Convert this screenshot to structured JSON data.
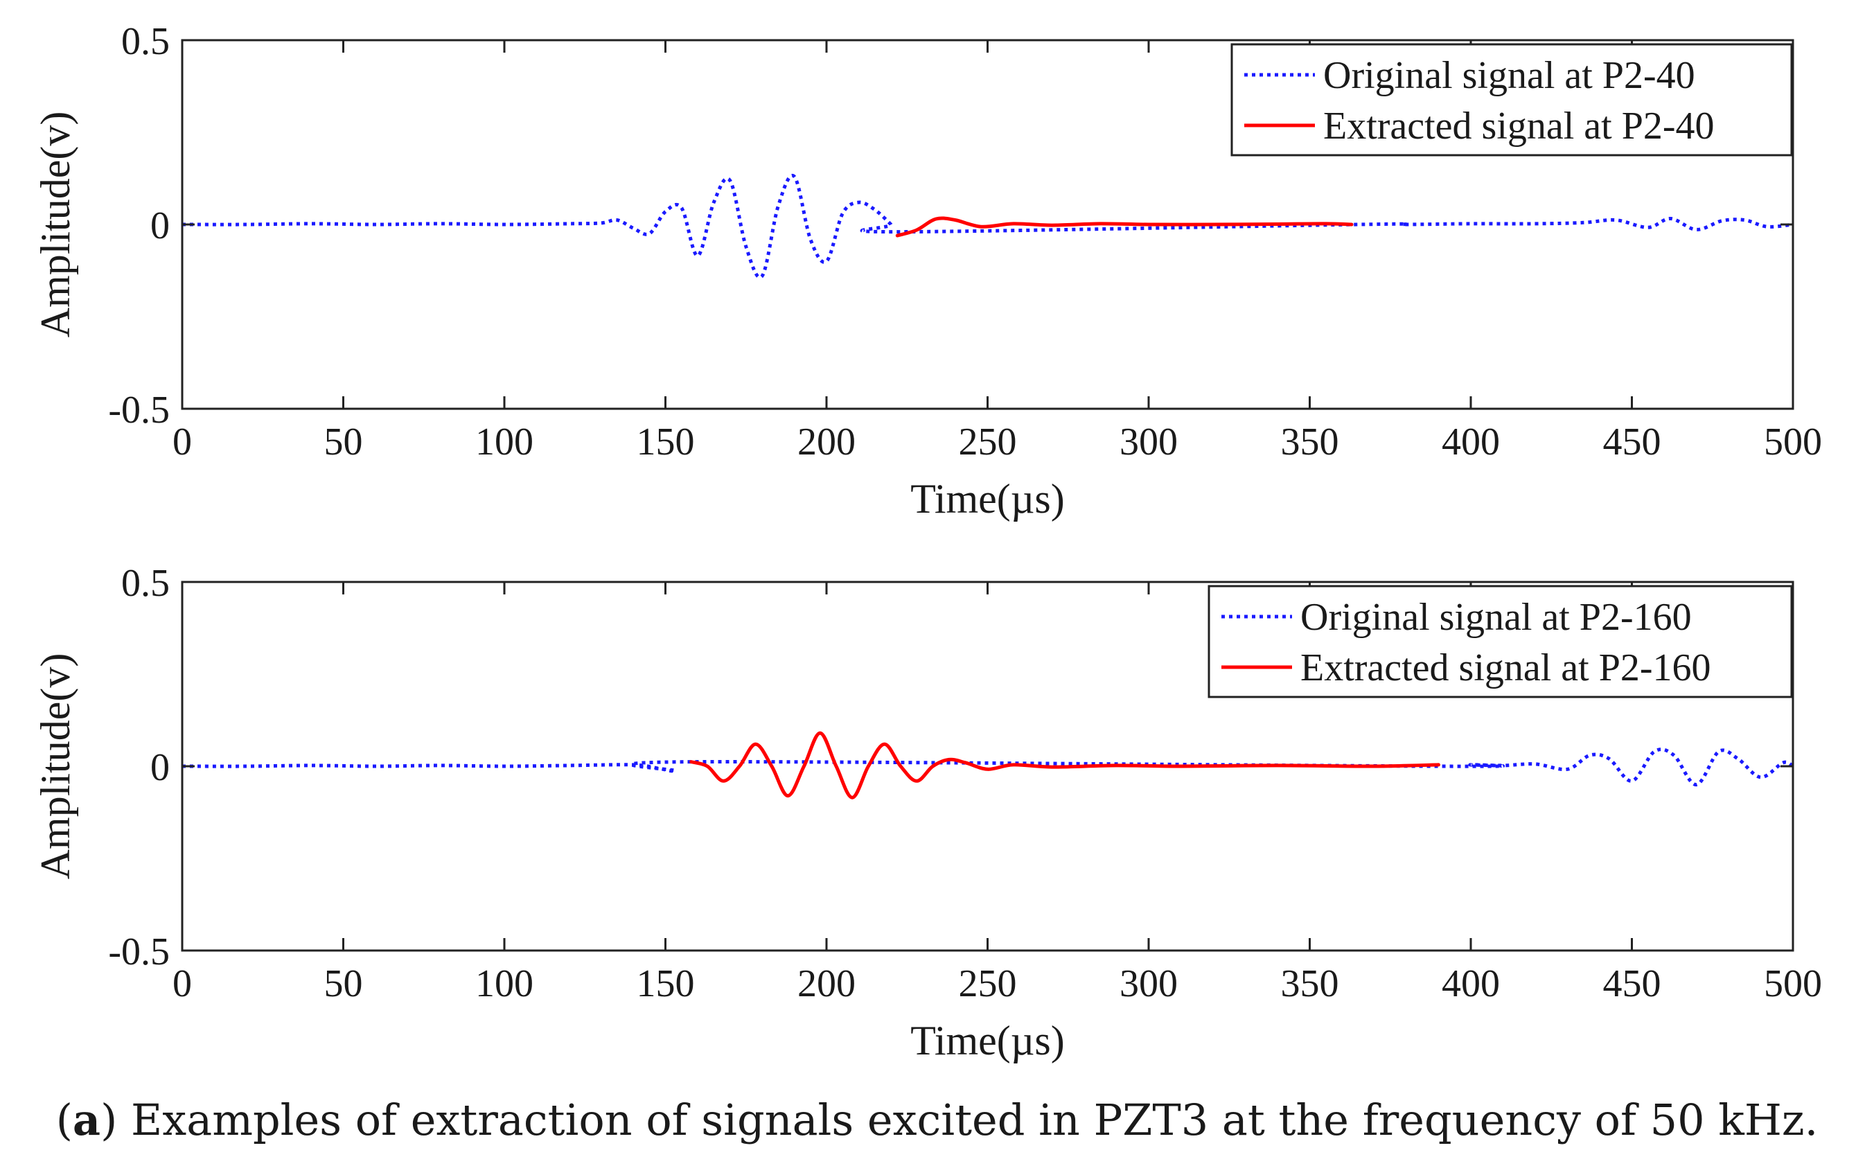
{
  "chart_data": [
    {
      "type": "line",
      "title": "",
      "xlabel": "Time(µs)",
      "ylabel": "Amplitude(v)",
      "xlim": [
        0,
        500
      ],
      "ylim": [
        -0.5,
        0.5
      ],
      "xticks": [
        0,
        50,
        100,
        150,
        200,
        250,
        300,
        350,
        400,
        450,
        500
      ],
      "yticks": [
        -0.5,
        0,
        0.5
      ],
      "xtick_labels": [
        "0",
        "50",
        "100",
        "150",
        "200",
        "250",
        "300",
        "350",
        "400",
        "450",
        "500"
      ],
      "ytick_labels": [
        "-0.5",
        "0",
        "0.5"
      ],
      "legend_position": "top-right",
      "series": [
        {
          "name": "Original signal at P2-40",
          "style": "dotted",
          "color": "#1a1aff",
          "x": [
            0,
            20,
            40,
            60,
            80,
            100,
            120,
            130,
            135,
            140,
            145,
            150,
            155,
            160,
            165,
            170,
            175,
            180,
            185,
            190,
            195,
            200,
            205,
            210,
            215,
            220,
            222,
            365,
            380,
            400,
            420,
            435,
            445,
            455,
            462,
            470,
            478,
            485,
            492,
            500
          ],
          "y": [
            0,
            0,
            0.002,
            0,
            0.002,
            0,
            0.002,
            0.004,
            0.012,
            -0.01,
            -0.025,
            0.035,
            0.045,
            -0.085,
            0.06,
            0.12,
            -0.06,
            -0.14,
            0.05,
            0.13,
            -0.04,
            -0.1,
            0.03,
            0.06,
            0.04,
            0.0,
            -0.02,
            0,
            0,
            0.002,
            0.002,
            0.005,
            0.012,
            -0.008,
            0.016,
            -0.014,
            0.01,
            0.012,
            -0.006,
            0
          ]
        },
        {
          "name": "Extracted signal at P2-40",
          "style": "solid",
          "color": "#ff0000",
          "x": [
            222,
            228,
            234,
            240,
            248,
            258,
            270,
            285,
            300,
            320,
            340,
            355,
            363
          ],
          "y": [
            -0.03,
            -0.015,
            0.015,
            0.012,
            -0.006,
            0.002,
            -0.002,
            0.002,
            0,
            0,
            0.001,
            0.002,
            0
          ]
        }
      ]
    },
    {
      "type": "line",
      "title": "",
      "xlabel": "Time(µs)",
      "ylabel": "Amplitude(v)",
      "xlim": [
        0,
        500
      ],
      "ylim": [
        -0.5,
        0.5
      ],
      "xticks": [
        0,
        50,
        100,
        150,
        200,
        250,
        300,
        350,
        400,
        450,
        500
      ],
      "yticks": [
        -0.5,
        0,
        0.5
      ],
      "xtick_labels": [
        "0",
        "50",
        "100",
        "150",
        "200",
        "250",
        "300",
        "350",
        "400",
        "450",
        "500"
      ],
      "ytick_labels": [
        "-0.5",
        "0",
        "0.5"
      ],
      "legend_position": "top-right",
      "series": [
        {
          "name": "Original signal at P2-160",
          "style": "dotted",
          "color": "#1a1aff",
          "x": [
            0,
            20,
            40,
            60,
            80,
            100,
            120,
            140,
            148,
            153,
            158,
            390,
            400,
            410,
            420,
            430,
            437,
            443,
            450,
            457,
            463,
            470,
            477,
            483,
            490,
            497,
            500
          ],
          "y": [
            0,
            0,
            0.002,
            0,
            0.002,
            0,
            0.002,
            0.004,
            -0.006,
            -0.012,
            0.012,
            0,
            0.004,
            0.002,
            0.006,
            -0.008,
            0.03,
            0.02,
            -0.04,
            0.04,
            0.03,
            -0.05,
            0.04,
            0.02,
            -0.03,
            0.01,
            0
          ]
        },
        {
          "name": "Extracted signal at P2-160",
          "style": "solid",
          "color": "#ff0000",
          "x": [
            158,
            163,
            168,
            173,
            178,
            183,
            188,
            193,
            198,
            203,
            208,
            213,
            218,
            223,
            228,
            233,
            238,
            243,
            250,
            258,
            270,
            290,
            310,
            340,
            370,
            390
          ],
          "y": [
            0.012,
            0.0,
            -0.04,
            0.0,
            0.06,
            0.0,
            -0.08,
            0.0,
            0.09,
            0.0,
            -0.085,
            0.0,
            0.06,
            0.0,
            -0.04,
            0.0,
            0.018,
            0.01,
            -0.008,
            0.004,
            -0.002,
            0.002,
            0,
            0.002,
            0,
            0.004
          ]
        }
      ]
    }
  ],
  "caption": {
    "label": "a",
    "text": "Examples of extraction of signals excited in PZT3 at the frequency of 50 kHz."
  }
}
